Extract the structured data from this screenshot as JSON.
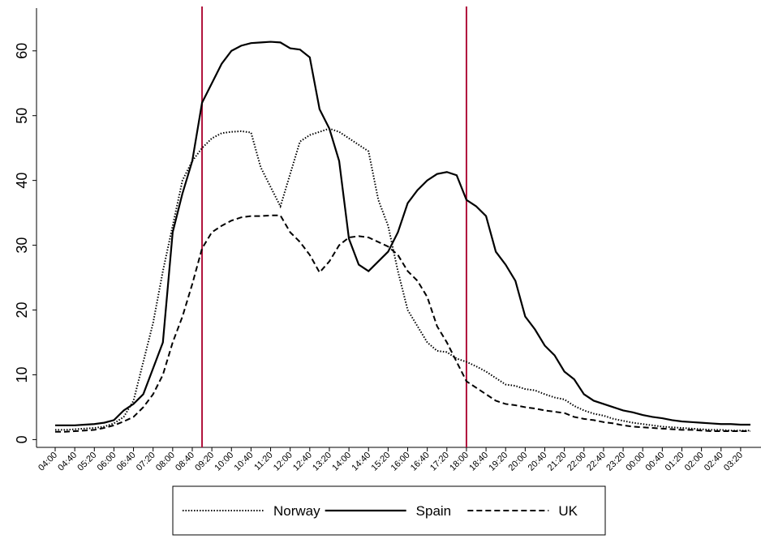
{
  "chart_data": {
    "type": "line",
    "categories": [
      "04:00",
      null,
      "04:40",
      null,
      "05:20",
      null,
      "06:00",
      null,
      "06:40",
      null,
      "07:20",
      null,
      "08:00",
      null,
      "08:40",
      null,
      "09:20",
      null,
      "10:00",
      null,
      "10:40",
      null,
      "11:20",
      null,
      "12:00",
      null,
      "12:40",
      null,
      "13:20",
      null,
      "14:00",
      null,
      "14:40",
      null,
      "15:20",
      null,
      "16:00",
      null,
      "16:40",
      null,
      "17:20",
      null,
      "18:00",
      null,
      "18:40",
      null,
      "19:20",
      null,
      "20:00",
      null,
      "20:40",
      null,
      "21:20",
      null,
      "22:00",
      null,
      "22:40",
      null,
      "23:20",
      null,
      "00:00",
      null,
      "00:40",
      null,
      "01:20",
      null,
      "02:00",
      null,
      "02:40",
      null,
      "03:20",
      null
    ],
    "series": [
      {
        "name": "Norway",
        "color": "#000000",
        "style": "dotted",
        "values": [
          1.5,
          1.5,
          1.6,
          1.7,
          1.8,
          2,
          2.5,
          3.5,
          6,
          12,
          18,
          26,
          33,
          40,
          43,
          45,
          46.5,
          47.3,
          47.5,
          47.6,
          47.4,
          42,
          39,
          36,
          41,
          46,
          47,
          47.5,
          48,
          47.5,
          46.5,
          45.5,
          44.5,
          37,
          33,
          26,
          20,
          17.5,
          15,
          13.7,
          13.5,
          12.5,
          12,
          11.3,
          10.5,
          9.5,
          8.5,
          8.3,
          7.8,
          7.6,
          7,
          6.5,
          6.2,
          5.2,
          4.5,
          4,
          3.7,
          3.2,
          2.9,
          2.6,
          2.4,
          2.2,
          2,
          1.9,
          1.8,
          1.7,
          1.6,
          1.5,
          1.5,
          1.4,
          1.4,
          1.4
        ]
      },
      {
        "name": "Spain",
        "color": "#000000",
        "style": "solid",
        "values": [
          2.2,
          2.2,
          2.2,
          2.3,
          2.4,
          2.6,
          3,
          4.5,
          5.5,
          7,
          11,
          15,
          32,
          38,
          43,
          52,
          55,
          58,
          60,
          60.8,
          61.2,
          61.3,
          61.4,
          61.3,
          60.4,
          60.2,
          59,
          51,
          48,
          43,
          31,
          27,
          26,
          27.5,
          29,
          32,
          36.5,
          38.5,
          40,
          41,
          41.3,
          40.8,
          37,
          36,
          34.5,
          29,
          27,
          24.5,
          19,
          17,
          14.5,
          13,
          10.5,
          9.3,
          7,
          6,
          5.5,
          5,
          4.5,
          4.2,
          3.8,
          3.5,
          3.3,
          3,
          2.8,
          2.7,
          2.6,
          2.5,
          2.4,
          2.4,
          2.3,
          2.3
        ]
      },
      {
        "name": "UK",
        "color": "#000000",
        "style": "dashed",
        "values": [
          1.2,
          1.2,
          1.3,
          1.4,
          1.5,
          1.8,
          2.2,
          2.8,
          3.5,
          5,
          7,
          10,
          15,
          19,
          24,
          29.5,
          32,
          33,
          33.8,
          34.3,
          34.5,
          34.5,
          34.6,
          34.6,
          32,
          30.5,
          28.5,
          25.8,
          27.5,
          30,
          31.2,
          31.4,
          31.2,
          30.5,
          29.8,
          28.5,
          26,
          24.5,
          22,
          17.5,
          15,
          12,
          9,
          8,
          7,
          6,
          5.5,
          5.3,
          5,
          4.8,
          4.5,
          4.3,
          4.1,
          3.5,
          3.2,
          3,
          2.7,
          2.5,
          2.2,
          2,
          1.9,
          1.8,
          1.7,
          1.6,
          1.5,
          1.5,
          1.4,
          1.3,
          1.3,
          1.3,
          1.3,
          1.3
        ]
      }
    ],
    "reference_lines": {
      "x": [
        15,
        42
      ],
      "color": "#b0103a"
    },
    "ylim": [
      -1.2,
      66.6
    ],
    "yticks": [
      0,
      10,
      20,
      30,
      40,
      50,
      60
    ],
    "legend": "bottom"
  }
}
